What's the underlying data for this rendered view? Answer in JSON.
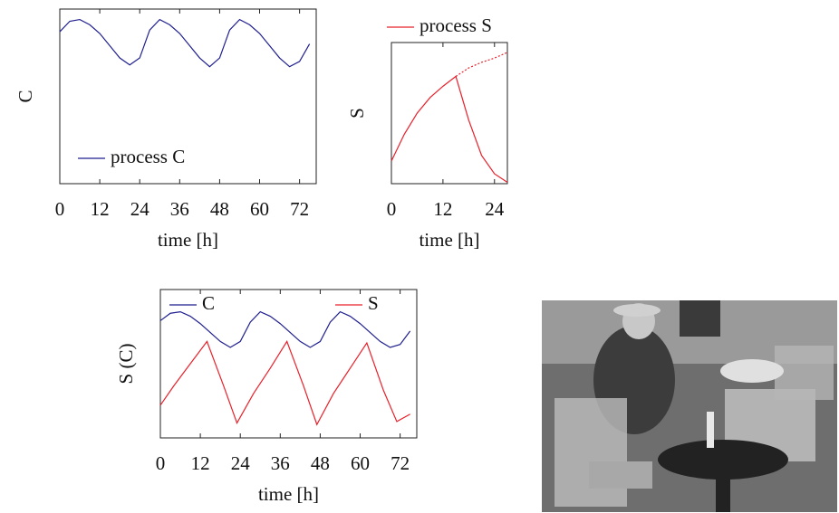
{
  "chart_data": [
    {
      "type": "line",
      "xlabel": "time [h]",
      "ylabel": "C",
      "xlim": [
        0,
        77
      ],
      "ylim": [
        0,
        1
      ],
      "xticks": [
        0,
        12,
        24,
        36,
        48,
        60,
        72
      ],
      "legend": "lower left",
      "series": [
        {
          "name": "process C",
          "color": "#1f1f8f",
          "x": [
            0,
            3,
            6,
            9,
            12,
            15,
            18,
            21,
            24,
            27,
            30,
            33,
            36,
            39,
            42,
            45,
            48,
            51,
            54,
            57,
            60,
            63,
            66,
            69,
            72,
            75
          ],
          "values": [
            0.87,
            0.93,
            0.94,
            0.91,
            0.86,
            0.79,
            0.72,
            0.68,
            0.72,
            0.88,
            0.94,
            0.91,
            0.86,
            0.79,
            0.72,
            0.67,
            0.72,
            0.88,
            0.94,
            0.91,
            0.86,
            0.79,
            0.72,
            0.67,
            0.7,
            0.8
          ]
        }
      ]
    },
    {
      "type": "line",
      "xlabel": "time [h]",
      "ylabel": "S",
      "xlim": [
        0,
        27
      ],
      "ylim": [
        0,
        1
      ],
      "xticks": [
        0,
        12,
        24
      ],
      "legend": "above",
      "series": [
        {
          "name": "process S",
          "color": "#e8202a",
          "x": [
            0,
            3,
            6,
            9,
            12,
            15,
            18,
            21,
            24,
            27
          ],
          "values": [
            0.16,
            0.35,
            0.5,
            0.61,
            0.69,
            0.76,
            0.45,
            0.2,
            0.07,
            0.01
          ]
        },
        {
          "color": "#e8202a",
          "dash": true,
          "x": [
            15,
            18,
            21,
            24,
            27
          ],
          "values": [
            0.76,
            0.82,
            0.86,
            0.89,
            0.93
          ]
        }
      ]
    },
    {
      "type": "line",
      "xlabel": "time [h]",
      "ylabel": "S (C)",
      "xlim": [
        0,
        77
      ],
      "ylim": [
        0,
        1
      ],
      "xticks": [
        0,
        12,
        24,
        36,
        48,
        60,
        72
      ],
      "legend": "upper",
      "series": [
        {
          "name": "C",
          "color": "#1f1f8f",
          "x": [
            0,
            3,
            6,
            9,
            12,
            15,
            18,
            21,
            24,
            27,
            30,
            33,
            36,
            39,
            42,
            45,
            48,
            51,
            54,
            57,
            60,
            63,
            66,
            69,
            72,
            75
          ],
          "values": [
            0.79,
            0.84,
            0.85,
            0.82,
            0.77,
            0.71,
            0.65,
            0.61,
            0.65,
            0.78,
            0.85,
            0.82,
            0.77,
            0.71,
            0.65,
            0.61,
            0.65,
            0.78,
            0.85,
            0.82,
            0.77,
            0.71,
            0.65,
            0.61,
            0.63,
            0.72
          ]
        },
        {
          "name": "S",
          "color": "#e8202a",
          "x": [
            0,
            4,
            8,
            14,
            19,
            23,
            28,
            33,
            38,
            43,
            47,
            52,
            57,
            62,
            67,
            71,
            75
          ],
          "values": [
            0.22,
            0.35,
            0.47,
            0.65,
            0.35,
            0.1,
            0.3,
            0.47,
            0.65,
            0.35,
            0.09,
            0.3,
            0.47,
            0.64,
            0.32,
            0.11,
            0.16
          ]
        }
      ]
    }
  ]
}
